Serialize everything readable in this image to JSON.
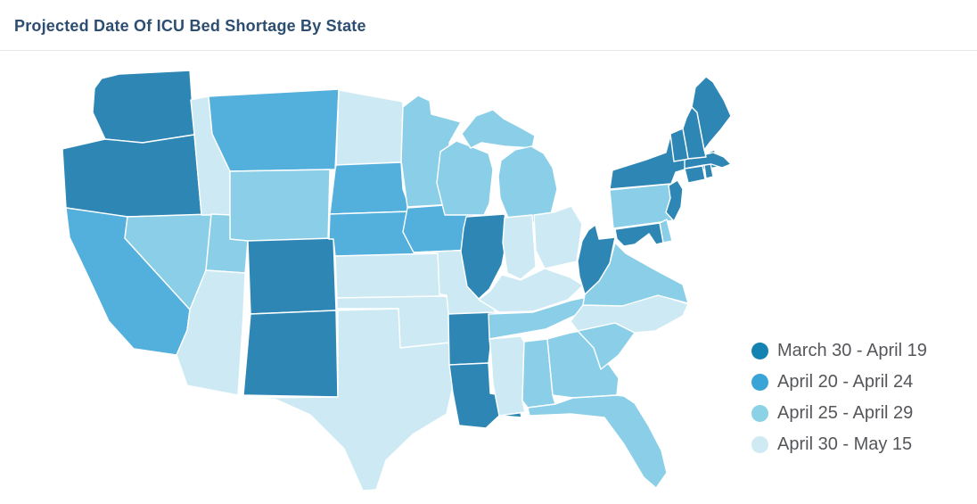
{
  "window": {
    "title": "Projected Date Of ICU Bed Shortage By State"
  },
  "styles": {
    "title_color": "#2d4e71",
    "legend_text_color": "#55565a",
    "divider_color": "#e8e8e8",
    "background": "#ffffff",
    "state_border_color": "#ffffff"
  },
  "legend": {
    "items": [
      {
        "label": "March 30 - April 19",
        "color": "#1583b2",
        "map_color": "#2e86b5"
      },
      {
        "label": "April 20 - April 24",
        "color": "#3ba4d7",
        "map_color": "#53afdc"
      },
      {
        "label": "April 25 - April 29",
        "color": "#8cd2e6",
        "map_color": "#8acfe7"
      },
      {
        "label": "April 30 - May 15",
        "color": "#cfeaf2",
        "map_color": "#cdeaf4"
      }
    ]
  },
  "chart_data": {
    "type": "choropleth",
    "title": "Projected Date Of ICU Bed Shortage By State",
    "legend_position": "right",
    "categories": [
      "March 30 - April 19",
      "April 20 - April 24",
      "April 25 - April 29",
      "April 30 - May 15"
    ],
    "category_colors": [
      "#1583b2",
      "#3ba4d7",
      "#8cd2e6",
      "#cfeaf2"
    ],
    "states_by_category": {
      "March 30 - April 19": [
        "WA",
        "OR",
        "CO",
        "NM",
        "IL",
        "AR",
        "LA",
        "WV",
        "MD",
        "NJ",
        "NY",
        "CT",
        "RI",
        "MA",
        "VT",
        "NH",
        "ME"
      ],
      "April 20 - April 24": [
        "CA",
        "MT",
        "SD",
        "NE",
        "IA"
      ],
      "April 25 - April 29": [
        "NV",
        "UT",
        "WY",
        "MN",
        "WI",
        "MI",
        "PA",
        "DE",
        "VA",
        "TN",
        "AL",
        "GA",
        "SC",
        "FL"
      ],
      "April 30 - May 15": [
        "ID",
        "AZ",
        "TX",
        "OK",
        "KS",
        "MO",
        "ND",
        "IN",
        "OH",
        "KY",
        "MS",
        "NC"
      ]
    }
  }
}
